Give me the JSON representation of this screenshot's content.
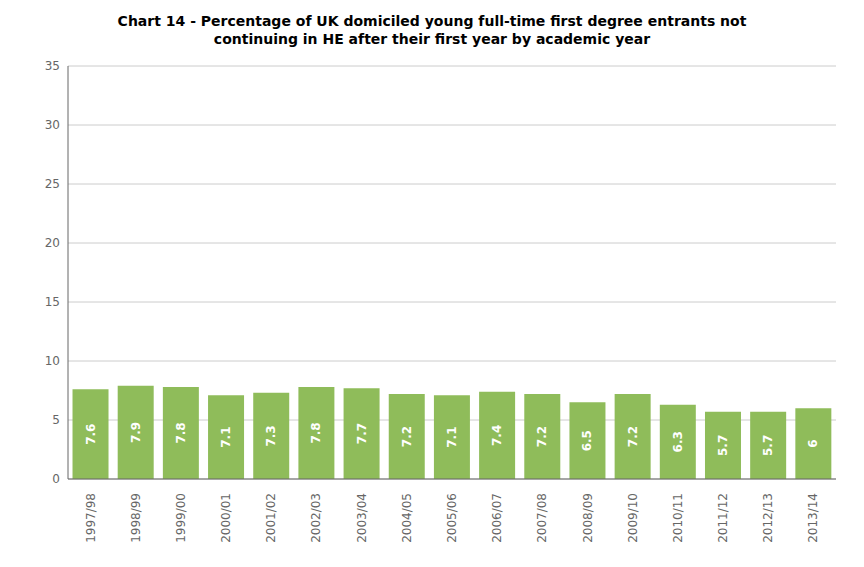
{
  "chart_data": {
    "type": "bar",
    "title": "Chart 14 - Percentage of UK domiciled young full-time first degree entrants not\ncontinuing in HE after their first year by academic year",
    "categories": [
      "1997/98",
      "1998/99",
      "1999/00",
      "2000/01",
      "2001/02",
      "2002/03",
      "2003/04",
      "2004/05",
      "2005/06",
      "2006/07",
      "2007/08",
      "2008/09",
      "2009/10",
      "2010/11",
      "2011/12",
      "2012/13",
      "2013/14"
    ],
    "values": [
      7.6,
      7.9,
      7.8,
      7.1,
      7.3,
      7.8,
      7.7,
      7.2,
      7.1,
      7.4,
      7.2,
      6.5,
      7.2,
      6.3,
      5.7,
      5.7,
      6.0
    ],
    "color": "#8fbc5a",
    "ylim": [
      0,
      35
    ],
    "yticks": [
      0,
      5,
      10,
      15,
      20,
      25,
      30,
      35
    ],
    "grid": true,
    "data_labels": true
  }
}
